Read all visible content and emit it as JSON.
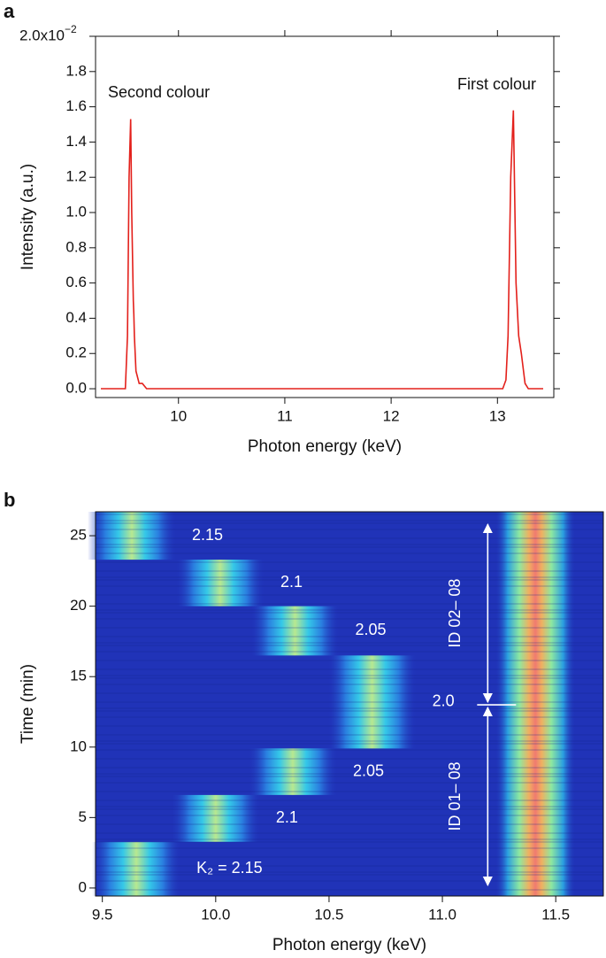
{
  "chart_data": [
    {
      "type": "line",
      "panel_label": "a",
      "xlabel": "Photon energy (keV)",
      "ylabel": "Intensity (a.u.)",
      "xlim": [
        9.22,
        13.53
      ],
      "ylim": [
        -0.05,
        2.0
      ],
      "xticks": [
        10,
        11,
        12,
        13
      ],
      "yticks": [
        {
          "value": 0,
          "label": "0.0"
        },
        0.2,
        0.4,
        0.6,
        0.8,
        {
          "value": 1,
          "label": "1.0"
        },
        1.2,
        1.4,
        1.6,
        1.8,
        {
          "value": 2,
          "label": "2.0x10"
        }
      ],
      "ytick_exponent": "−2",
      "color": "#e3201b",
      "x": [
        9.27,
        9.5,
        9.52,
        9.535,
        9.55,
        9.56,
        9.575,
        9.58,
        9.585,
        9.6,
        9.63,
        9.66,
        9.7,
        13.05,
        13.08,
        13.1,
        13.125,
        13.15,
        13.175,
        13.2,
        13.225,
        13.26,
        13.29,
        13.43
      ],
      "values": [
        0,
        0,
        0.3,
        1.2,
        1.53,
        1.0,
        0.5,
        0.42,
        0.3,
        0.1,
        0.03,
        0.03,
        0,
        0,
        0.05,
        0.3,
        1.2,
        1.58,
        0.6,
        0.3,
        0.2,
        0.03,
        0,
        0
      ],
      "annotations": [
        "Second colour",
        "First colour"
      ]
    },
    {
      "type": "heatmap",
      "panel_label": "b",
      "xlabel": "Photon energy (keV)",
      "ylabel": "Time (min)",
      "xlim": [
        9.47,
        11.71
      ],
      "ylim": [
        -0.57,
        26.7
      ],
      "xticks": [
        9.5,
        {
          "value": 10,
          "label": "10.0"
        },
        10.5,
        {
          "value": 11,
          "label": "11.0"
        },
        11.5
      ],
      "yticks": [
        0,
        5,
        10,
        15,
        20,
        25
      ],
      "bands": [
        {
          "time": [
            -0.57,
            3.27
          ],
          "energy": 9.65,
          "label": "K₂ = 2.15"
        },
        {
          "time": [
            3.27,
            6.6
          ],
          "energy": 10.0,
          "label": "2.1"
        },
        {
          "time": [
            6.6,
            9.9
          ],
          "energy": 10.34,
          "label": "2.05"
        },
        {
          "time": [
            9.9,
            16.5
          ],
          "energy": 10.69,
          "label": "2.0"
        },
        {
          "time": [
            16.5,
            20.0
          ],
          "energy": 10.35,
          "label": "2.05"
        },
        {
          "time": [
            20.0,
            23.3
          ],
          "energy": 10.02,
          "label": "2.1"
        },
        {
          "time": [
            23.3,
            26.7
          ],
          "energy": 9.63,
          "label": "2.15"
        }
      ],
      "reference_band": {
        "time": [
          -0.57,
          26.7
        ],
        "energy": 11.41
      },
      "intervals": [
        {
          "time": [
            0,
            13
          ],
          "label": "ID 01– 08"
        },
        {
          "time": [
            13,
            26
          ],
          "label": "ID 02– 08"
        }
      ]
    }
  ]
}
